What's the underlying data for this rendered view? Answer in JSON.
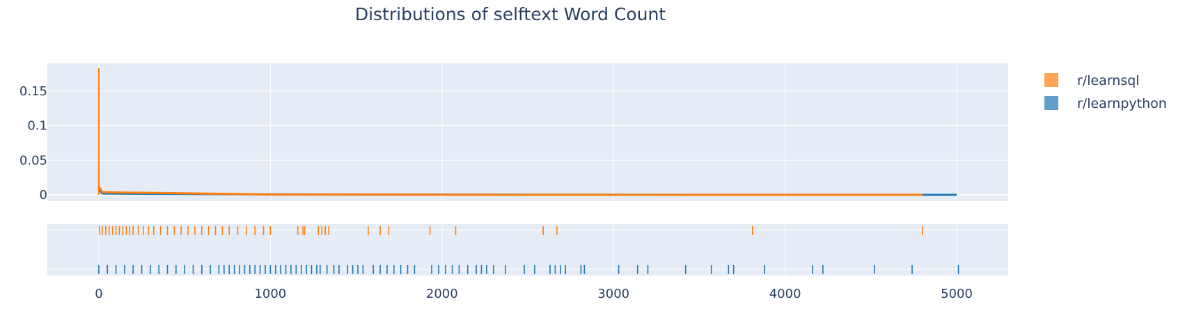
{
  "chart_data": {
    "type": "distplot",
    "title": "Distributions of selftext Word Count",
    "xlabel": "",
    "ylabel": "",
    "xlim": [
      -300,
      5300
    ],
    "ylim": [
      -0.009,
      0.19
    ],
    "xticks": [
      0,
      1000,
      2000,
      3000,
      4000,
      5000
    ],
    "xtick_labels": [
      "0",
      "1000",
      "2000",
      "3000",
      "4000",
      "5000"
    ],
    "yticks": [
      0,
      0.05,
      0.1,
      0.15
    ],
    "ytick_labels": [
      "0",
      "0.05",
      "0.1",
      "0.15"
    ],
    "grid": true,
    "legend_position": "top-right",
    "series": [
      {
        "name": "r/learnsql",
        "color": "#ff7f0e",
        "hist_peak": {
          "x": 0,
          "y": 0.183
        },
        "curve": [
          [
            0,
            0.012
          ],
          [
            20,
            0.004
          ],
          [
            100,
            0.0035
          ],
          [
            300,
            0.003
          ],
          [
            800,
            0.0012
          ],
          [
            1000,
            0.0003
          ],
          [
            2000,
            0.0001
          ],
          [
            3000,
            5e-05
          ],
          [
            4000,
            3e-05
          ],
          [
            4800,
            0.0
          ]
        ],
        "rug": [
          3,
          20,
          40,
          60,
          80,
          100,
          120,
          140,
          160,
          180,
          200,
          230,
          260,
          290,
          320,
          360,
          400,
          440,
          480,
          520,
          560,
          600,
          640,
          680,
          720,
          760,
          810,
          860,
          910,
          960,
          1000,
          1160,
          1190,
          1200,
          1280,
          1300,
          1320,
          1340,
          1570,
          1640,
          1690,
          1930,
          2080,
          2590,
          2670,
          3810,
          4800
        ]
      },
      {
        "name": "r/learnpython",
        "color": "#1f77b4",
        "hist_peak": {
          "x": 0,
          "y": 0.042
        },
        "curve": [
          [
            0,
            0.008
          ],
          [
            20,
            0.002
          ],
          [
            300,
            0.0015
          ],
          [
            1000,
            0.0006
          ],
          [
            2000,
            0.0002
          ],
          [
            3000,
            0.0001
          ],
          [
            4000,
            5e-05
          ],
          [
            5000,
            0.0
          ]
        ],
        "rug": [
          0,
          50,
          100,
          150,
          200,
          250,
          300,
          350,
          400,
          450,
          500,
          550,
          600,
          650,
          700,
          730,
          760,
          790,
          820,
          850,
          880,
          910,
          940,
          970,
          1000,
          1030,
          1060,
          1090,
          1120,
          1150,
          1180,
          1210,
          1240,
          1270,
          1290,
          1330,
          1370,
          1400,
          1450,
          1480,
          1510,
          1540,
          1600,
          1640,
          1680,
          1720,
          1760,
          1800,
          1840,
          1940,
          1980,
          2020,
          2060,
          2100,
          2150,
          2200,
          2230,
          2260,
          2300,
          2370,
          2480,
          2540,
          2630,
          2660,
          2690,
          2720,
          2810,
          2830,
          3030,
          3140,
          3200,
          3420,
          3570,
          3670,
          3700,
          3880,
          4160,
          4220,
          4520,
          4740,
          5010
        ]
      }
    ]
  }
}
